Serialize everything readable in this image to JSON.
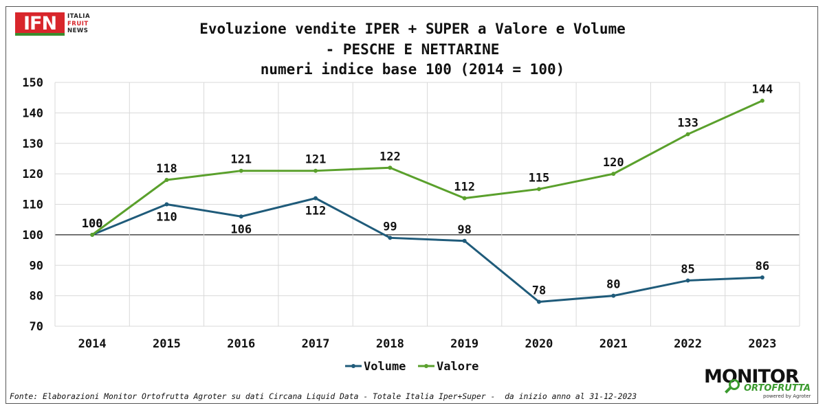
{
  "title_lines": [
    "Evoluzione vendite IPER + SUPER a Valore e Volume",
    "- PESCHE E NETTARINE",
    "numeri indice base 100 (2014 = 100)"
  ],
  "logo_ifn": {
    "mark": "IFN",
    "line1": "ITALIA",
    "line2": "FRUIT",
    "line3": "NEWS"
  },
  "logo_monitor": {
    "line1": "MONITOR",
    "line2": "ORTOFRUTTA",
    "line3": "powered by Agroter"
  },
  "source": "Fonte: Elaborazioni Monitor Ortofrutta Agroter su dati Circana Liquid Data - Totale Italia Iper+Super -  da inizio anno al 31-12-2023",
  "chart_data": {
    "type": "line",
    "categories": [
      "2014",
      "2015",
      "2016",
      "2017",
      "2018",
      "2019",
      "2020",
      "2021",
      "2022",
      "2023"
    ],
    "series": [
      {
        "name": "Volume",
        "color": "#1f5b7a",
        "values": [
          100,
          110,
          106,
          112,
          99,
          98,
          78,
          80,
          85,
          86
        ],
        "labels": [
          "100",
          "110",
          "106",
          "112",
          "99",
          "98",
          "78",
          "80",
          "85",
          "86"
        ]
      },
      {
        "name": "Valore",
        "color": "#5aa02c",
        "values": [
          100,
          118,
          121,
          121,
          122,
          112,
          115,
          120,
          133,
          144
        ],
        "labels": [
          "100",
          "118",
          "121",
          "121",
          "122",
          "112",
          "115",
          "120",
          "133",
          "144"
        ]
      }
    ],
    "ylim": [
      70,
      150
    ],
    "yticks": [
      70,
      80,
      90,
      100,
      110,
      120,
      130,
      140,
      150
    ],
    "reference_line": 100,
    "grid": true,
    "legend": "bottom-center"
  }
}
